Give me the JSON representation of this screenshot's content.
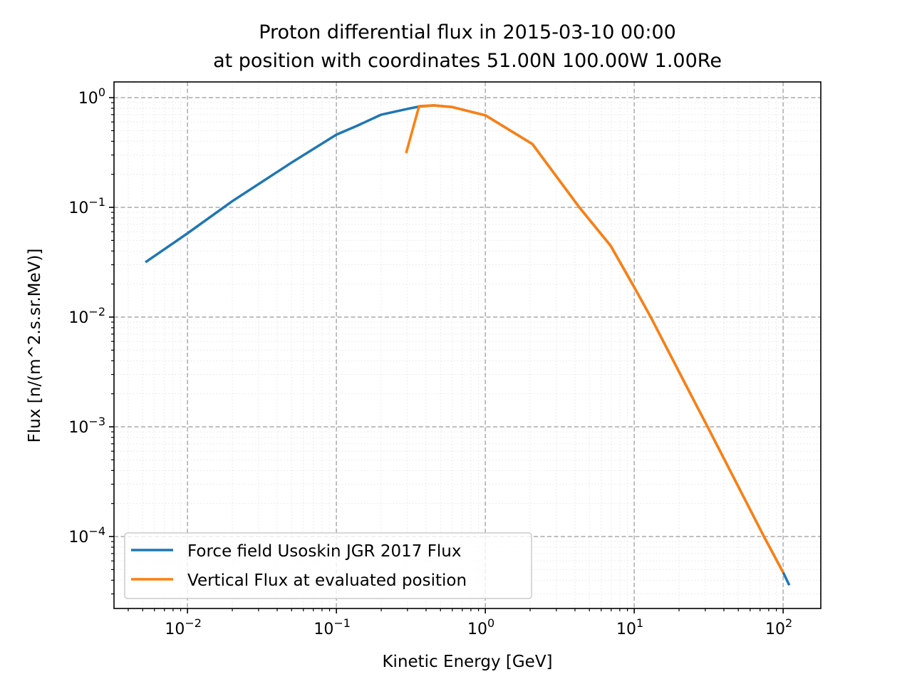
{
  "chart_data": {
    "type": "line",
    "title": [
      "Proton differential flux in 2015-03-10 00:00",
      "at position with coordinates 51.00N 100.00W 1.00Re"
    ],
    "xlabel": "Kinetic Energy [GeV]",
    "ylabel": "Flux [n/(m^2.s.sr.MeV)]",
    "xscale": "log",
    "yscale": "log",
    "xlim": [
      0.00321,
      179
    ],
    "ylim": [
      2.21e-05,
      1.39
    ],
    "grid": {
      "major": "dashed",
      "minor": "dotted"
    },
    "legend_position": "lower-left",
    "x_ticks": [
      {
        "value": 0.01,
        "base": "10",
        "exp": "−2"
      },
      {
        "value": 0.1,
        "base": "10",
        "exp": "−1"
      },
      {
        "value": 1,
        "base": "10",
        "exp": "0"
      },
      {
        "value": 10,
        "base": "10",
        "exp": "1"
      },
      {
        "value": 100,
        "base": "10",
        "exp": "2"
      }
    ],
    "y_ticks": [
      {
        "value": 1,
        "base": "10",
        "exp": "0"
      },
      {
        "value": 0.1,
        "base": "10",
        "exp": "−1"
      },
      {
        "value": 0.01,
        "base": "10",
        "exp": "−2"
      },
      {
        "value": 0.001,
        "base": "10",
        "exp": "−3"
      },
      {
        "value": 0.0001,
        "base": "10",
        "exp": "−4"
      }
    ],
    "series": [
      {
        "name": "Force field Usoskin JGR 2017 Flux",
        "color": "#1f77b4",
        "x": [
          0.00522,
          0.01,
          0.02,
          0.05,
          0.1,
          0.136,
          0.2,
          0.3,
          0.36,
          0.45,
          0.6,
          1,
          2.07,
          4.28,
          6.95,
          10,
          12.9,
          22.4,
          31.1,
          74.3,
          100,
          110
        ],
        "y": [
          0.0316,
          0.058,
          0.114,
          0.256,
          0.46,
          0.55,
          0.7,
          0.79,
          0.83,
          0.85,
          0.82,
          0.69,
          0.378,
          0.1,
          0.0446,
          0.0187,
          0.01,
          0.00235,
          0.001,
          0.0001,
          4.7e-05,
          3.6e-05
        ]
      },
      {
        "name": "Vertical Flux at evaluated position",
        "color": "#ff7f0e",
        "x": [
          0.294,
          0.359,
          0.45,
          0.6,
          1,
          2.07,
          4.28,
          6.95,
          10,
          12.9,
          22.4,
          31.1,
          74.3,
          100
        ],
        "y": [
          0.312,
          0.836,
          0.85,
          0.82,
          0.69,
          0.378,
          0.1,
          0.0446,
          0.0187,
          0.01,
          0.00235,
          0.001,
          0.0001,
          4.7e-05
        ]
      }
    ]
  }
}
